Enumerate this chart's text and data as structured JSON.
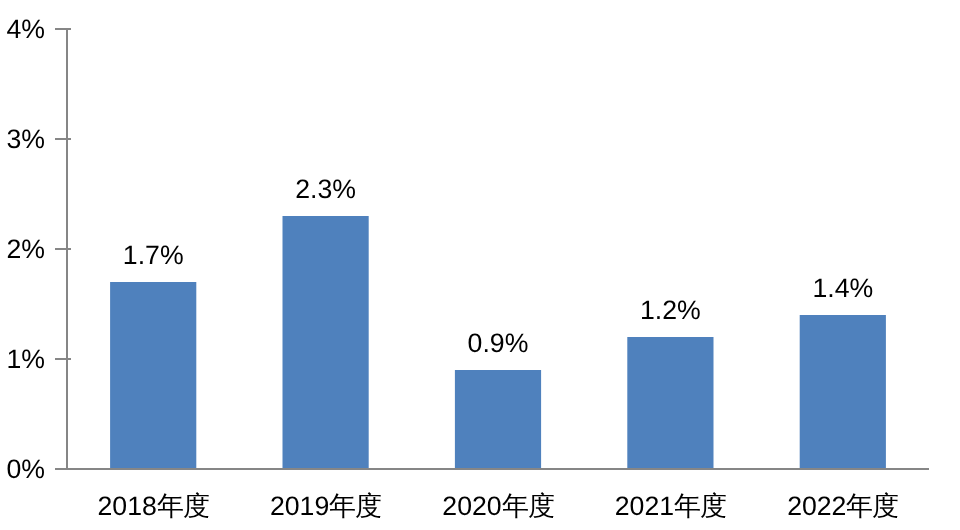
{
  "chart_data": {
    "type": "bar",
    "categories": [
      "2018年度",
      "2019年度",
      "2020年度",
      "2021年度",
      "2022年度"
    ],
    "values": [
      1.7,
      2.3,
      0.9,
      1.2,
      1.4
    ],
    "value_labels": [
      "1.7%",
      "2.3%",
      "0.9%",
      "1.2%",
      "1.4%"
    ],
    "color": "#4f81bd",
    "ylim": [
      0,
      4
    ],
    "yticks": [
      {
        "value": 0,
        "label": "0%"
      },
      {
        "value": 1,
        "label": "1%"
      },
      {
        "value": 2,
        "label": "2%"
      },
      {
        "value": 3,
        "label": "3%"
      },
      {
        "value": 4,
        "label": "4%"
      }
    ],
    "grid": false
  }
}
